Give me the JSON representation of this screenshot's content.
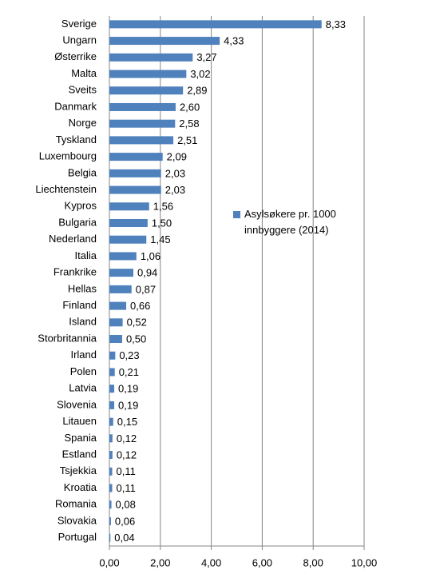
{
  "chart_data": {
    "type": "barh",
    "categories": [
      "Sverige",
      "Ungarn",
      "Østerrike",
      "Malta",
      "Sveits",
      "Danmark",
      "Norge",
      "Tyskland",
      "Luxembourg",
      "Belgia",
      "Liechtenstein",
      "Kypros",
      "Bulgaria",
      "Nederland",
      "Italia",
      "Frankrike",
      "Hellas",
      "Finland",
      "Island",
      "Storbritannia",
      "Irland",
      "Polen",
      "Latvia",
      "Slovenia",
      "Litauen",
      "Spania",
      "Estland",
      "Tsjekkia",
      "Kroatia",
      "Romania",
      "Slovakia",
      "Portugal"
    ],
    "series": [
      {
        "name": "Asylsøkere pr. 1000 innbyggere (2014)",
        "color": "#4f81bd",
        "values": [
          8.33,
          4.33,
          3.27,
          3.02,
          2.89,
          2.6,
          2.58,
          2.51,
          2.09,
          2.03,
          2.03,
          1.56,
          1.5,
          1.45,
          1.06,
          0.94,
          0.87,
          0.66,
          0.52,
          0.5,
          0.23,
          0.21,
          0.19,
          0.19,
          0.15,
          0.12,
          0.12,
          0.11,
          0.11,
          0.08,
          0.06,
          0.04
        ],
        "value_labels": [
          "8,33",
          "4,33",
          "3,27",
          "3,02",
          "2,89",
          "2,60",
          "2,58",
          "2,51",
          "2,09",
          "2,03",
          "2,03",
          "1,56",
          "1,50",
          "1,45",
          "1,06",
          "0,94",
          "0,87",
          "0,66",
          "0,52",
          "0,50",
          "0,23",
          "0,21",
          "0,19",
          "0,19",
          "0,15",
          "0,12",
          "0,12",
          "0,11",
          "0,11",
          "0,08",
          "0,06",
          "0,04"
        ]
      }
    ],
    "xlim": [
      0,
      10
    ],
    "xticks": [
      {
        "value": 0,
        "label": "0,00"
      },
      {
        "value": 2,
        "label": "2,00"
      },
      {
        "value": 4,
        "label": "4,00"
      },
      {
        "value": 6,
        "label": "6,00"
      },
      {
        "value": 8,
        "label": "8,00"
      },
      {
        "value": 10,
        "label": "10,00"
      }
    ],
    "grid": true,
    "legend": "center-right"
  }
}
